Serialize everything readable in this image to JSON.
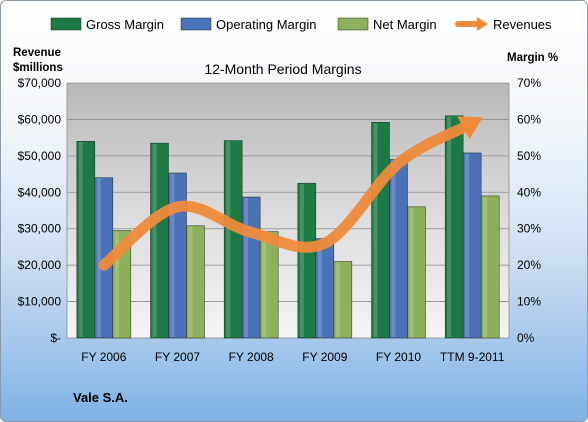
{
  "chart_data": {
    "type": "bar",
    "title": "12-Month Period Margins",
    "company": "Vale S.A.",
    "left_axis_label": [
      "Revenue",
      "$millions"
    ],
    "right_axis_label": "Margin %",
    "categories": [
      "FY 2006",
      "FY 2007",
      "FY 2008",
      "FY 2009",
      "FY 2010",
      "TTM 9-2011"
    ],
    "left_ticks": [
      "$-",
      "$10,000",
      "$20,000",
      "$30,000",
      "$40,000",
      "$50,000",
      "$60,000",
      "$70,000"
    ],
    "right_ticks": [
      "0%",
      "10%",
      "20%",
      "30%",
      "40%",
      "50%",
      "60%",
      "70%"
    ],
    "ylim_left": [
      0,
      70000
    ],
    "ylim_right": [
      0,
      70
    ],
    "series": [
      {
        "name": "Gross Margin",
        "axis": "right",
        "color": "#1e7a45",
        "values": [
          54,
          53.5,
          54.2,
          42.5,
          59.2,
          61
        ]
      },
      {
        "name": "Operating Margin",
        "axis": "right",
        "color": "#4a72b8",
        "values": [
          44,
          45.3,
          38.7,
          27.3,
          49,
          50.8
        ]
      },
      {
        "name": "Net Margin",
        "axis": "right",
        "color": "#8fb05a",
        "values": [
          29.5,
          30.8,
          29.2,
          21,
          36,
          39
        ]
      },
      {
        "name": "Revenues",
        "axis": "left",
        "color": "#ef8a3a",
        "type": "line",
        "values": [
          20000,
          36000,
          29000,
          26000,
          48000,
          59000
        ]
      }
    ],
    "grid": true,
    "legend": "top"
  }
}
